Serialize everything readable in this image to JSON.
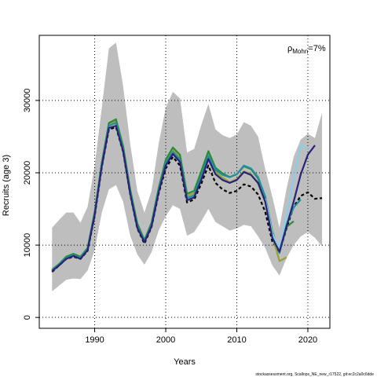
{
  "chart_data": {
    "type": "line",
    "title": "",
    "xlabel": "Years",
    "ylabel": "Recruits (age 3)",
    "xlim": [
      1982.2,
      2023.1
    ],
    "ylim": [
      -1500,
      39000
    ],
    "x_ticks": [
      1990,
      2000,
      2010,
      2020
    ],
    "y_ticks": [
      0,
      10000,
      20000,
      30000
    ],
    "grid": true,
    "annotation": {
      "rho": "ρ",
      "subscript": "Mohn",
      "value": "=7%"
    },
    "footer": "stockassessment.org, Scallops_NE_new_r17522, git:ec2c2a0c6dde",
    "band": {
      "name": "confidence interval",
      "color": "#bebebe",
      "x": [
        1984,
        1985,
        1986,
        1987,
        1988,
        1989,
        1990,
        1991,
        1992,
        1993,
        1994,
        1995,
        1996,
        1997,
        1998,
        1999,
        2000,
        2001,
        2002,
        2003,
        2004,
        2005,
        2006,
        2007,
        2008,
        2009,
        2010,
        2011,
        2012,
        2013,
        2014,
        2015,
        2016,
        2017,
        2018,
        2019,
        2020,
        2021,
        2022
      ],
      "lower": [
        3600,
        4400,
        5200,
        5400,
        5300,
        6500,
        9300,
        14500,
        17700,
        18300,
        16000,
        11300,
        8700,
        7300,
        9000,
        12000,
        14000,
        15500,
        15000,
        11300,
        11800,
        13300,
        15000,
        13200,
        12600,
        12000,
        12300,
        12800,
        12600,
        11200,
        9600,
        7200,
        5800,
        8200,
        10000,
        11200,
        11800,
        11000,
        9800
      ],
      "upper": [
        12400,
        13500,
        14500,
        14500,
        13100,
        15300,
        21000,
        29000,
        37200,
        38000,
        32000,
        24000,
        17500,
        14500,
        17500,
        24000,
        29000,
        31200,
        30300,
        22800,
        23300,
        26600,
        29500,
        26000,
        25200,
        24800,
        25300,
        27000,
        26500,
        25000,
        20500,
        16700,
        12400,
        17800,
        22200,
        24600,
        25400,
        24800,
        28300
      ]
    },
    "series": [
      {
        "color": "#000000",
        "dash": "4,3",
        "x": [
          1984,
          1985,
          1986,
          1987,
          1988,
          1989,
          1990,
          1991,
          1992,
          1993,
          1994,
          1995,
          1996,
          1997,
          1998,
          1999,
          2000,
          2001,
          2002,
          2003,
          2004,
          2005,
          2006,
          2007,
          2008,
          2009,
          2010,
          2011,
          2012,
          2013,
          2014,
          2015,
          2016,
          2017,
          2018,
          2019,
          2020,
          2021,
          2022
        ],
        "y": [
          6300,
          7200,
          8100,
          8400,
          8100,
          9200,
          14000,
          20800,
          26000,
          26300,
          22900,
          17000,
          12300,
          10200,
          12500,
          17100,
          20600,
          22200,
          21000,
          15900,
          16300,
          18500,
          21000,
          18600,
          17700,
          17200,
          17500,
          18400,
          18100,
          17000,
          14600,
          10500,
          9000,
          12300,
          15300,
          16800,
          17300,
          16400,
          16500
        ]
      },
      {
        "color": "#9aa033",
        "x": [
          1984,
          1985,
          1986,
          1987,
          1988,
          1989,
          1990,
          1991,
          1992,
          1993,
          1994,
          1995,
          1996,
          1997,
          1998,
          1999,
          2000,
          2001,
          2002,
          2003,
          2004,
          2005,
          2006,
          2007,
          2008,
          2009,
          2010,
          2011,
          2012,
          2013,
          2014,
          2015,
          2016,
          2017
        ],
        "y": [
          6500,
          7300,
          8300,
          8700,
          8300,
          9500,
          14400,
          21200,
          26700,
          27200,
          23500,
          17500,
          12800,
          10500,
          12900,
          17700,
          21500,
          23200,
          22100,
          16800,
          17200,
          19700,
          22500,
          20100,
          19300,
          18700,
          19100,
          20200,
          19800,
          18500,
          16000,
          11300,
          7800,
          8300
        ]
      },
      {
        "color": "#2a8a3c",
        "x": [
          1984,
          1985,
          1986,
          1987,
          1988,
          1989,
          1990,
          1991,
          1992,
          1993,
          1994,
          1995,
          1996,
          1997,
          1998,
          1999,
          2000,
          2001,
          2002,
          2003,
          2004,
          2005,
          2006,
          2007,
          2008,
          2009,
          2010,
          2011,
          2012,
          2013,
          2014,
          2015,
          2016,
          2017,
          2018
        ],
        "y": [
          6600,
          7400,
          8400,
          8800,
          8400,
          9600,
          14600,
          21400,
          26900,
          27400,
          23700,
          17700,
          13000,
          10700,
          13100,
          17900,
          21800,
          23500,
          22500,
          17100,
          17500,
          20200,
          23000,
          20700,
          19900,
          19400,
          19800,
          20900,
          20500,
          19200,
          16700,
          11900,
          9000,
          12500,
          13300
        ]
      },
      {
        "color": "#1e90a0",
        "x": [
          1984,
          1985,
          1986,
          1987,
          1988,
          1989,
          1990,
          1991,
          1992,
          1993,
          1994,
          1995,
          1996,
          1997,
          1998,
          1999,
          2000,
          2001,
          2002,
          2003,
          2004,
          2005,
          2006,
          2007,
          2008,
          2009,
          2010,
          2011,
          2012,
          2013,
          2014,
          2015,
          2016,
          2017,
          2018,
          2019
        ],
        "y": [
          6500,
          7300,
          8200,
          8600,
          8200,
          9400,
          14300,
          21100,
          26500,
          26900,
          23200,
          17300,
          12600,
          10500,
          12800,
          17500,
          21300,
          22900,
          21800,
          16500,
          16900,
          19500,
          22300,
          20400,
          19700,
          19400,
          19800,
          21000,
          20600,
          19400,
          16700,
          11500,
          8900,
          12800,
          15200,
          16300
        ]
      },
      {
        "color": "#87ceeb",
        "x": [
          2014,
          2015,
          2016,
          2017,
          2018,
          2019,
          2020
        ],
        "y": [
          16400,
          11600,
          9500,
          14000,
          19200,
          23800,
          23200
        ]
      },
      {
        "color": "#27227a",
        "x": [
          1984,
          1985,
          1986,
          1987,
          1988,
          1989,
          1990,
          1991,
          1992,
          1993,
          1994,
          1995,
          1996,
          1997,
          1998,
          1999,
          2000,
          2001,
          2002,
          2003,
          2004,
          2005,
          2006,
          2007,
          2008,
          2009,
          2010,
          2011,
          2012,
          2013,
          2014,
          2015,
          2016,
          2017,
          2018,
          2019,
          2020,
          2021
        ],
        "y": [
          6400,
          7200,
          8100,
          8500,
          8100,
          9300,
          14200,
          20900,
          26200,
          26500,
          23000,
          17100,
          12400,
          10400,
          12600,
          17300,
          21000,
          22600,
          21500,
          16200,
          16600,
          19000,
          21900,
          19800,
          19000,
          18600,
          19000,
          20100,
          19700,
          18600,
          16000,
          11000,
          9100,
          12600,
          16000,
          19800,
          22500,
          23800
        ]
      }
    ]
  }
}
